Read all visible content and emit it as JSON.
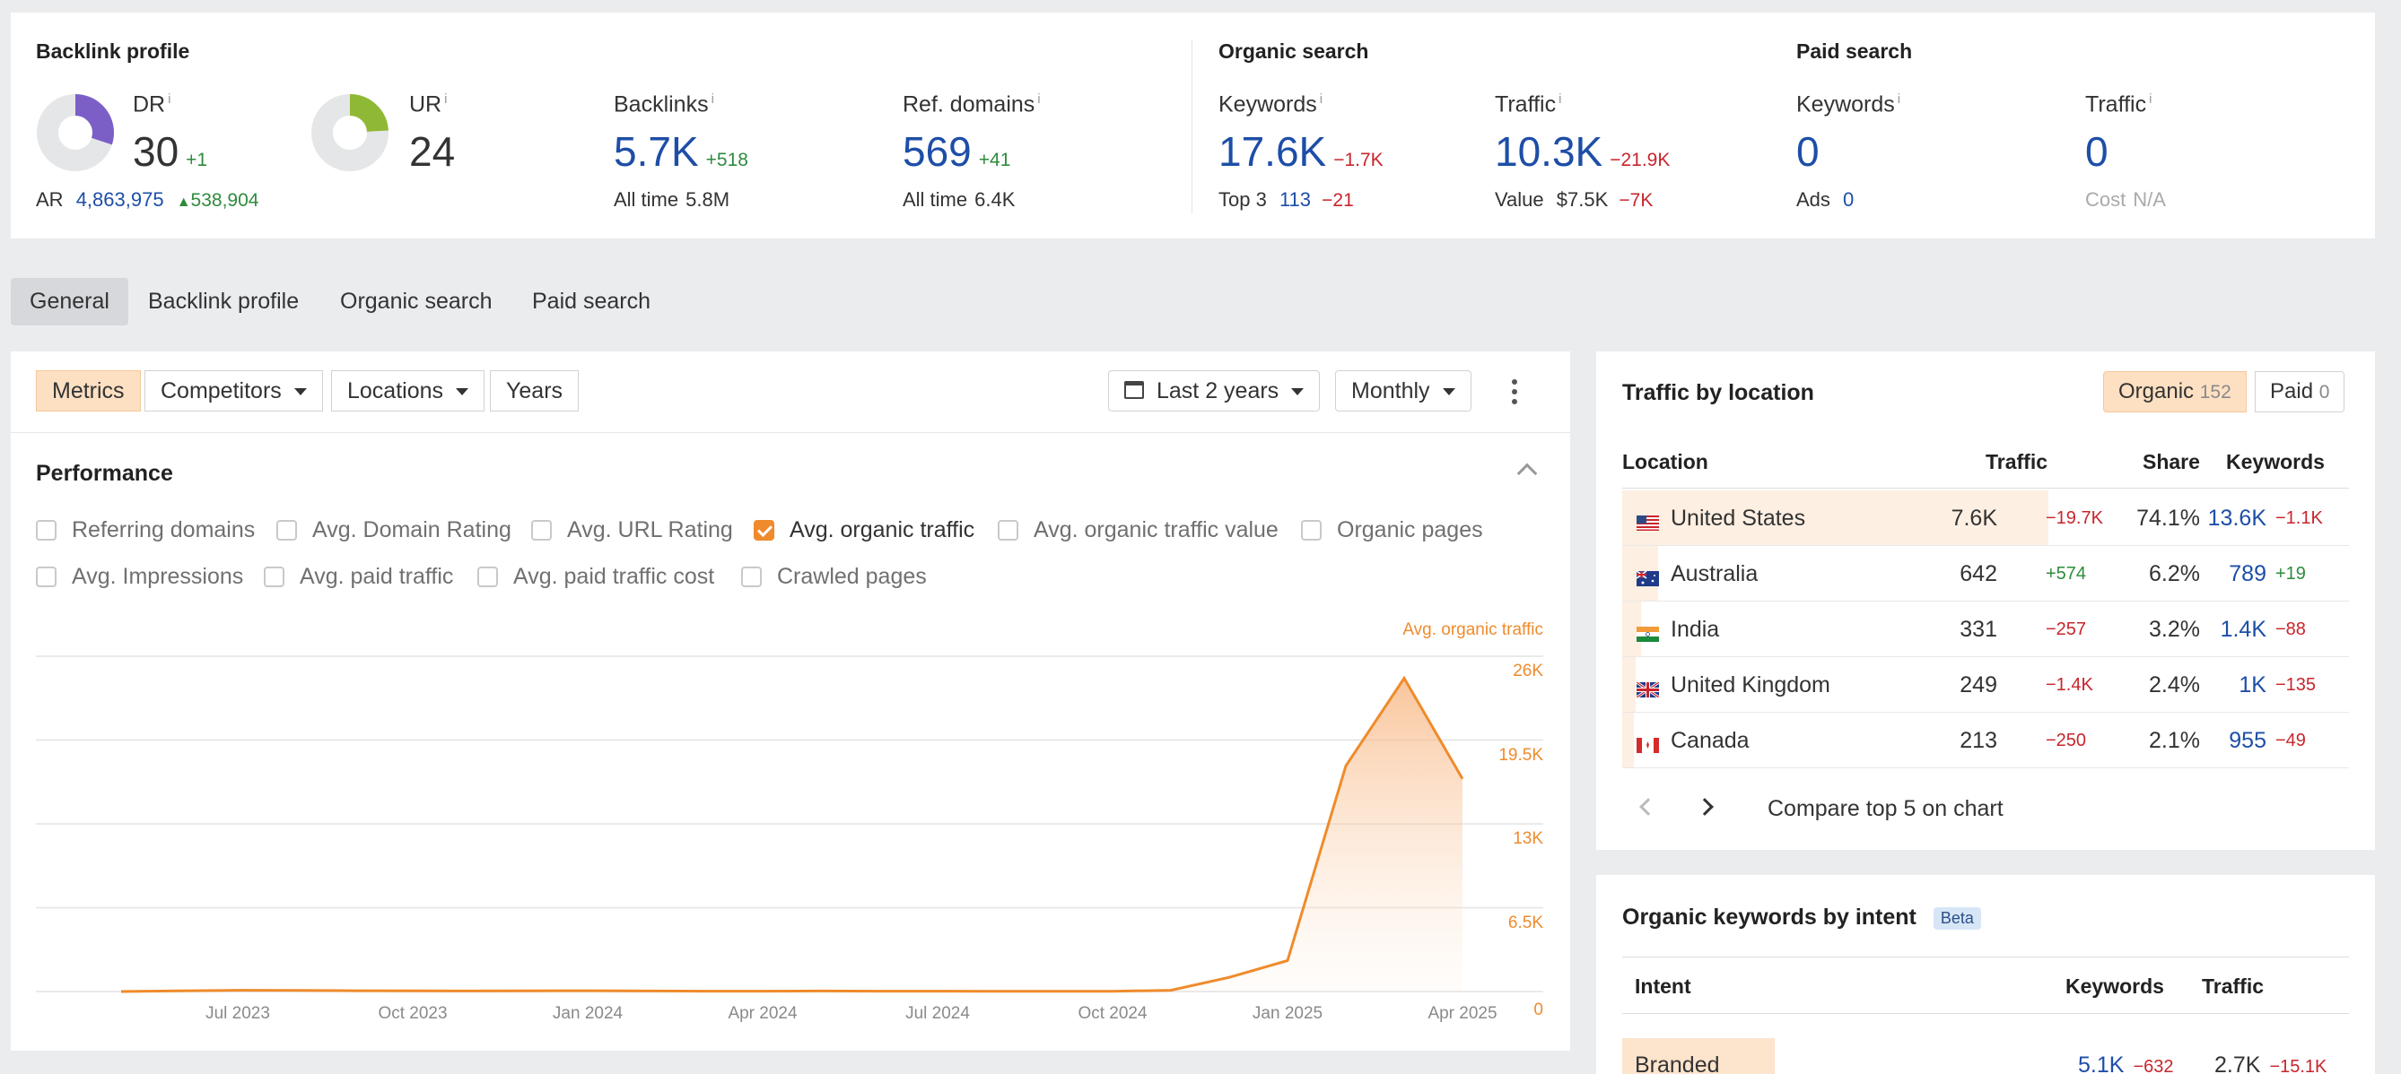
{
  "summary": {
    "backlink_profile": {
      "title": "Backlink profile",
      "dr": {
        "label": "DR",
        "value": "30",
        "delta": "+1",
        "fill": 0.3
      },
      "ur": {
        "label": "UR",
        "value": "24",
        "fill": 0.24
      },
      "ar": {
        "label": "AR",
        "value": "4,863,975",
        "delta": "538,904"
      },
      "backlinks": {
        "label": "Backlinks",
        "value": "5.7K",
        "delta": "+518",
        "sub_label": "All time",
        "sub_value": "5.8M"
      },
      "ref_domains": {
        "label": "Ref. domains",
        "value": "569",
        "delta": "+41",
        "sub_label": "All time",
        "sub_value": "6.4K"
      }
    },
    "organic_search": {
      "title": "Organic search",
      "keywords": {
        "label": "Keywords",
        "value": "17.6K",
        "delta": "−1.7K",
        "sub_label": "Top 3",
        "sub_value": "113",
        "sub_delta": "−21"
      },
      "traffic": {
        "label": "Traffic",
        "value": "10.3K",
        "delta": "−21.9K",
        "sub_label": "Value",
        "sub_value": "$7.5K",
        "sub_delta": "−7K"
      }
    },
    "paid_search": {
      "title": "Paid search",
      "keywords": {
        "label": "Keywords",
        "value": "0",
        "sub_label": "Ads",
        "sub_value": "0"
      },
      "traffic": {
        "label": "Traffic",
        "value": "0",
        "sub_label": "Cost",
        "sub_value": "N/A"
      }
    },
    "info_mark": "i"
  },
  "tabs": [
    "General",
    "Backlink profile",
    "Organic search",
    "Paid search"
  ],
  "toolbar": {
    "metrics": "Metrics",
    "competitors": "Competitors",
    "locations": "Locations",
    "years": "Years",
    "date_range": "Last 2 years",
    "interval": "Monthly"
  },
  "performance": {
    "title": "Performance",
    "checkboxes": [
      {
        "label": "Referring domains",
        "checked": false
      },
      {
        "label": "Avg. Domain Rating",
        "checked": false
      },
      {
        "label": "Avg. URL Rating",
        "checked": false
      },
      {
        "label": "Avg. organic traffic",
        "checked": true
      },
      {
        "label": "Avg. organic traffic value",
        "checked": false
      },
      {
        "label": "Organic pages",
        "checked": false
      },
      {
        "label": "Avg. Impressions",
        "checked": false
      },
      {
        "label": "Avg. paid traffic",
        "checked": false
      },
      {
        "label": "Avg. paid traffic cost",
        "checked": false
      },
      {
        "label": "Crawled pages",
        "checked": false
      }
    ]
  },
  "chart_data": {
    "type": "area",
    "series": [
      {
        "name": "Avg. organic traffic",
        "color": "#ef8b2c",
        "x": [
          "2023-05",
          "2023-06",
          "2023-07",
          "2023-08",
          "2023-09",
          "2023-10",
          "2023-11",
          "2023-12",
          "2024-01",
          "2024-02",
          "2024-03",
          "2024-04",
          "2024-05",
          "2024-06",
          "2024-07",
          "2024-08",
          "2024-09",
          "2024-10",
          "2024-11",
          "2024-12",
          "2025-01",
          "2025-02",
          "2025-03",
          "2025-04"
        ],
        "values": [
          0,
          50,
          100,
          80,
          60,
          50,
          40,
          50,
          60,
          40,
          30,
          30,
          40,
          30,
          30,
          20,
          20,
          20,
          100,
          1100,
          2400,
          17500,
          24300,
          16500
        ]
      }
    ],
    "x_ticks": [
      "Jul 2023",
      "Oct 2023",
      "Jan 2024",
      "Apr 2024",
      "Jul 2024",
      "Oct 2024",
      "Jan 2025",
      "Apr 2025"
    ],
    "y_ticks": [
      "0",
      "6.5K",
      "13K",
      "19.5K",
      "26K"
    ],
    "ylim": [
      0,
      26000
    ],
    "grid": true
  },
  "location": {
    "title": "Traffic by location",
    "organic_label": "Organic",
    "organic_count": "152",
    "paid_label": "Paid",
    "paid_count": "0",
    "headers": {
      "location": "Location",
      "traffic": "Traffic",
      "share": "Share",
      "keywords": "Keywords"
    },
    "rows": [
      {
        "country": "United States",
        "flag": "us",
        "traffic": "7.6K",
        "traffic_delta": "−19.7K",
        "share": "74.1%",
        "share_value": 0.741,
        "keywords": "13.6K",
        "keywords_delta": "−1.1K"
      },
      {
        "country": "Australia",
        "flag": "au",
        "traffic": "642",
        "traffic_delta": "+574",
        "share": "6.2%",
        "share_value": 0.062,
        "keywords": "789",
        "keywords_delta": "+19"
      },
      {
        "country": "India",
        "flag": "in",
        "traffic": "331",
        "traffic_delta": "−257",
        "share": "3.2%",
        "share_value": 0.032,
        "keywords": "1.4K",
        "keywords_delta": "−88"
      },
      {
        "country": "United Kingdom",
        "flag": "gb",
        "traffic": "249",
        "traffic_delta": "−1.4K",
        "share": "2.4%",
        "share_value": 0.024,
        "keywords": "1K",
        "keywords_delta": "−135"
      },
      {
        "country": "Canada",
        "flag": "ca",
        "traffic": "213",
        "traffic_delta": "−250",
        "share": "2.1%",
        "share_value": 0.021,
        "keywords": "955",
        "keywords_delta": "−49"
      }
    ],
    "compare_label": "Compare top 5 on chart"
  },
  "intent": {
    "title": "Organic keywords by intent",
    "badge": "Beta",
    "headers": {
      "intent": "Intent",
      "keywords": "Keywords",
      "traffic": "Traffic"
    },
    "rows": [
      {
        "intent": "Branded",
        "keywords": "5.1K",
        "keywords_delta": "−632",
        "traffic": "2.7K",
        "traffic_delta": "−15.1K"
      }
    ]
  }
}
